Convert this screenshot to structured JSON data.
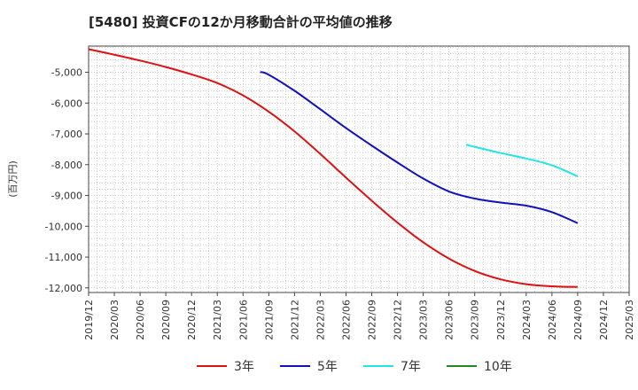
{
  "chart_data": {
    "type": "line",
    "title": "[5480]  投資CFの12か月移動合計の平均値の推移",
    "ylabel": "(百万円)",
    "xlabel": "",
    "x_labels": [
      "2019/12",
      "2020/03",
      "2020/06",
      "2020/09",
      "2020/12",
      "2021/03",
      "2021/06",
      "2021/09",
      "2021/12",
      "2022/03",
      "2022/06",
      "2022/09",
      "2022/12",
      "2023/03",
      "2023/06",
      "2023/09",
      "2023/12",
      "2024/03",
      "2024/06",
      "2024/09",
      "2024/12",
      "2025/03"
    ],
    "y_ticks": [
      -5000,
      -6000,
      -7000,
      -8000,
      -9000,
      -10000,
      -11000,
      -12000
    ],
    "y_tick_labels": [
      "-5,000",
      "-6,000",
      "-7,000",
      "-8,000",
      "-9,000",
      "-10,000",
      "-11,000",
      "-12,000"
    ],
    "ylim": [
      -12150,
      -4150
    ],
    "grid": true,
    "legend_position": "bottom",
    "series": [
      {
        "name": "3年",
        "color": "#dd1111",
        "points": [
          [
            "2019/12",
            -4250
          ],
          [
            "2020/03",
            -4430
          ],
          [
            "2020/06",
            -4620
          ],
          [
            "2020/09",
            -4830
          ],
          [
            "2020/12",
            -5070
          ],
          [
            "2021/03",
            -5350
          ],
          [
            "2021/06",
            -5750
          ],
          [
            "2021/09",
            -6280
          ],
          [
            "2021/12",
            -6920
          ],
          [
            "2022/03",
            -7650
          ],
          [
            "2022/06",
            -8420
          ],
          [
            "2022/09",
            -9170
          ],
          [
            "2022/12",
            -9880
          ],
          [
            "2023/03",
            -10520
          ],
          [
            "2023/06",
            -11050
          ],
          [
            "2023/09",
            -11450
          ],
          [
            "2023/12",
            -11720
          ],
          [
            "2024/03",
            -11880
          ],
          [
            "2024/06",
            -11950
          ],
          [
            "2024/09",
            -11970
          ]
        ]
      },
      {
        "name": "5年",
        "color": "#1111bb",
        "points": [
          [
            "2021/08",
            -4990
          ],
          [
            "2021/09",
            -5080
          ],
          [
            "2021/12",
            -5600
          ],
          [
            "2022/03",
            -6200
          ],
          [
            "2022/06",
            -6810
          ],
          [
            "2022/09",
            -7380
          ],
          [
            "2022/12",
            -7930
          ],
          [
            "2023/03",
            -8450
          ],
          [
            "2023/06",
            -8870
          ],
          [
            "2023/09",
            -9100
          ],
          [
            "2023/12",
            -9230
          ],
          [
            "2024/03",
            -9330
          ],
          [
            "2024/06",
            -9540
          ],
          [
            "2024/09",
            -9900
          ]
        ]
      },
      {
        "name": "7年",
        "color": "#22e5e5",
        "points": [
          [
            "2023/08",
            -7350
          ],
          [
            "2023/09",
            -7420
          ],
          [
            "2023/12",
            -7620
          ],
          [
            "2024/03",
            -7800
          ],
          [
            "2024/06",
            -8020
          ],
          [
            "2024/09",
            -8380
          ]
        ]
      },
      {
        "name": "10年",
        "color": "#228822",
        "points": []
      }
    ]
  }
}
